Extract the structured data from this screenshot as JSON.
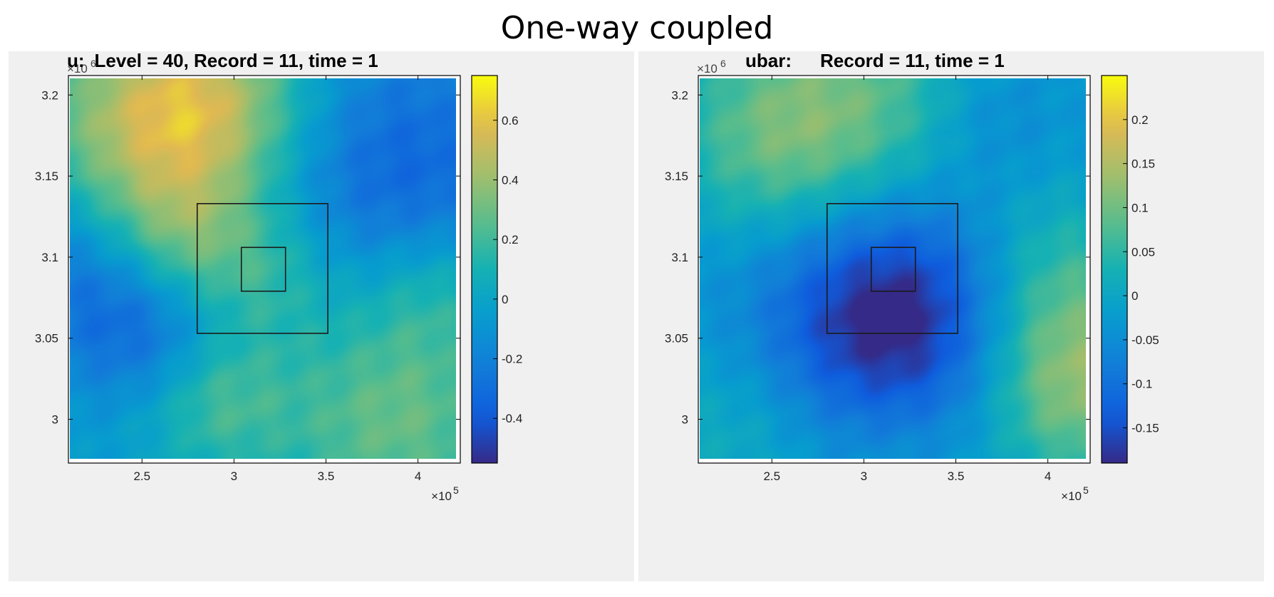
{
  "page_title": "One-way coupled",
  "colors": {
    "frame": "#000000",
    "panel_bg": "#f0f0f0",
    "box_outline": "#1a1a1a"
  },
  "colormap": "parula",
  "chart_data": [
    {
      "type": "heatmap",
      "title_var": "u:",
      "title_rest": "Level = 40,    Record = 11,    time = 1",
      "x_multiplier": "×10",
      "x_exponent": "5",
      "y_multiplier": "×10",
      "y_exponent": "6",
      "xlim": [
        2.1,
        4.23
      ],
      "ylim": [
        2.973,
        3.212
      ],
      "x_ticks": [
        2.5,
        3,
        3.5,
        4
      ],
      "x_tick_labels": [
        "2.5",
        "3",
        "3.5",
        "4"
      ],
      "y_ticks": [
        3.2,
        3.15,
        3.1,
        3.05,
        3
      ],
      "y_tick_labels": [
        "3.2",
        "3.15",
        "3.1",
        "3.05",
        "3"
      ],
      "color_range": [
        -0.55,
        0.75
      ],
      "colorbar_ticks": [
        0.6,
        0.4,
        0.2,
        0,
        -0.2,
        -0.4
      ],
      "colorbar_tick_labels": [
        "0.6",
        "0.4",
        "0.2",
        "0",
        "-0.2",
        "-0.4"
      ],
      "field_features": [
        {
          "x": 2.55,
          "y": 3.18,
          "value": 0.5,
          "spread": 0.25
        },
        {
          "x": 2.95,
          "y": 3.2,
          "value": 0.3,
          "spread": 0.2
        },
        {
          "x": 2.7,
          "y": 3.11,
          "value": 0.25,
          "spread": 0.15
        },
        {
          "x": 3.2,
          "y": 3.09,
          "value": 0.2,
          "spread": 0.15
        },
        {
          "x": 3.9,
          "y": 3.15,
          "value": -0.3,
          "spread": 0.3
        },
        {
          "x": 2.2,
          "y": 3.09,
          "value": -0.25,
          "spread": 0.2
        },
        {
          "x": 2.55,
          "y": 3.05,
          "value": -0.2,
          "spread": 0.15
        },
        {
          "x": 3.9,
          "y": 3.0,
          "value": 0.35,
          "spread": 0.25
        },
        {
          "x": 2.9,
          "y": 3.01,
          "value": 0.25,
          "spread": 0.15
        },
        {
          "x": 4.1,
          "y": 3.08,
          "value": 0.2,
          "spread": 0.15
        }
      ],
      "field_base": -0.05,
      "nested_boxes": [
        {
          "x": [
            2.8,
            3.51
          ],
          "y": [
            3.053,
            3.133
          ]
        },
        {
          "x": [
            3.04,
            3.28
          ],
          "y": [
            3.079,
            3.106
          ]
        }
      ]
    },
    {
      "type": "heatmap",
      "title_var": "ubar:",
      "title_rest": "Record = 11,    time = 1",
      "x_multiplier": "×10",
      "x_exponent": "5",
      "y_multiplier": "×10",
      "y_exponent": "6",
      "xlim": [
        2.1,
        4.23
      ],
      "ylim": [
        2.973,
        3.212
      ],
      "x_ticks": [
        2.5,
        3,
        3.5,
        4
      ],
      "x_tick_labels": [
        "2.5",
        "3",
        "3.5",
        "4"
      ],
      "y_ticks": [
        3.2,
        3.15,
        3.1,
        3.05,
        3
      ],
      "y_tick_labels": [
        "3.2",
        "3.15",
        "3.1",
        "3.05",
        "3"
      ],
      "color_range": [
        -0.19,
        0.25
      ],
      "colorbar_ticks": [
        0.2,
        0.15,
        0.1,
        0.05,
        0,
        -0.05,
        -0.1,
        -0.15
      ],
      "colorbar_tick_labels": [
        "0.2",
        "0.15",
        "0.1",
        "0.05",
        "0",
        "-0.05",
        "-0.1",
        "-0.15"
      ],
      "field_features": [
        {
          "x": 2.95,
          "y": 3.18,
          "value": 0.14,
          "spread": 0.3
        },
        {
          "x": 2.5,
          "y": 3.17,
          "value": 0.06,
          "spread": 0.2
        },
        {
          "x": 3.1,
          "y": 3.09,
          "value": -0.12,
          "spread": 0.28
        },
        {
          "x": 3.2,
          "y": 3.05,
          "value": -0.1,
          "spread": 0.25
        },
        {
          "x": 4.15,
          "y": 3.02,
          "value": 0.16,
          "spread": 0.2
        },
        {
          "x": 4.05,
          "y": 3.09,
          "value": 0.08,
          "spread": 0.18
        },
        {
          "x": 2.3,
          "y": 2.99,
          "value": 0.05,
          "spread": 0.2
        },
        {
          "x": 3.7,
          "y": 3.19,
          "value": -0.05,
          "spread": 0.15
        },
        {
          "x": 3.2,
          "y": 2.98,
          "value": 0.03,
          "spread": 0.15
        }
      ],
      "field_base": -0.03,
      "nested_boxes": [
        {
          "x": [
            2.8,
            3.51
          ],
          "y": [
            3.053,
            3.133
          ]
        },
        {
          "x": [
            3.04,
            3.28
          ],
          "y": [
            3.079,
            3.106
          ]
        }
      ]
    }
  ]
}
